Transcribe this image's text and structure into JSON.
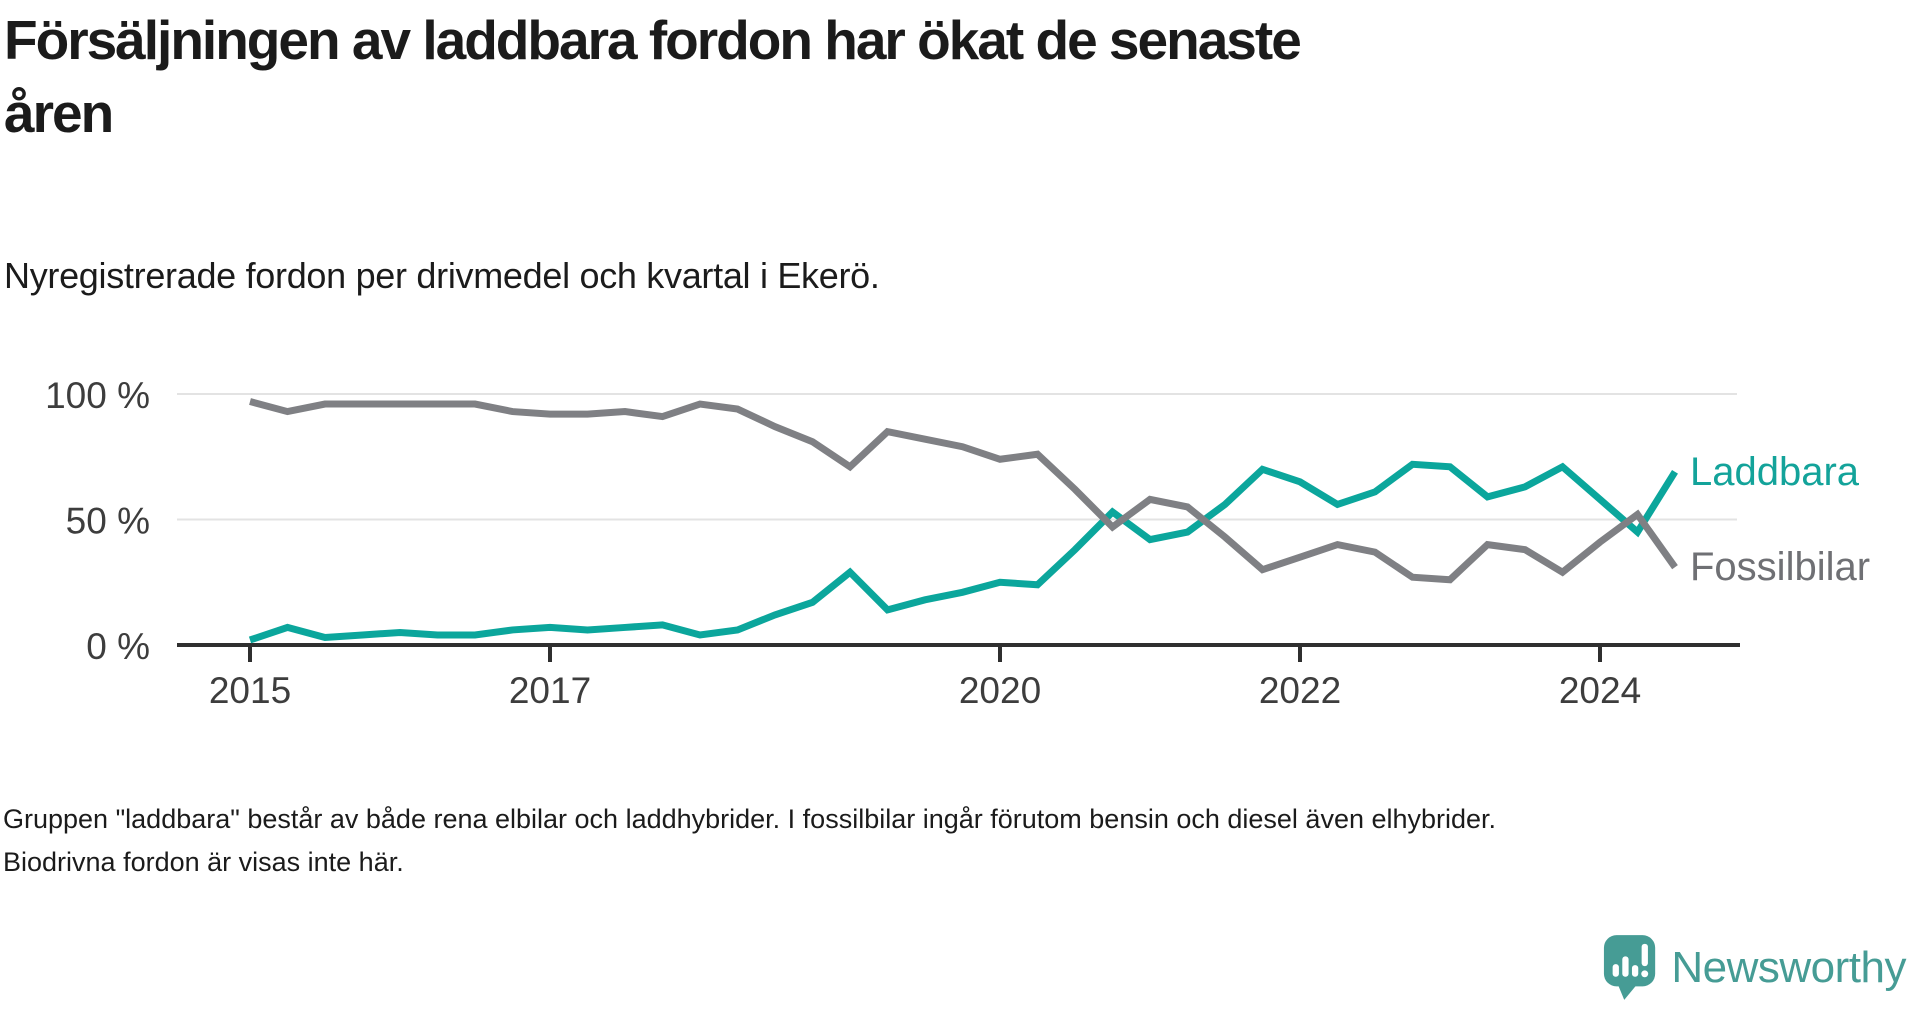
{
  "header": {
    "title_line1": "Försäljningen av laddbara fordon har ökat de senaste",
    "title_line2": "åren",
    "subtitle": "Nyregistrerade fordon per drivmedel och kvartal i Ekerö."
  },
  "chart_data": {
    "type": "line",
    "title": "Försäljningen av laddbara fordon har ökat de senaste åren",
    "subtitle": "Nyregistrerade fordon per drivmedel och kvartal i Ekerö.",
    "x_interval": "quarter",
    "x_start": "2015 Q1",
    "x_end": "2024 Q3",
    "x_axis": {
      "ticks": [
        {
          "label": "2015",
          "index": 0
        },
        {
          "label": "2017",
          "index": 8
        },
        {
          "label": "2020",
          "index": 20
        },
        {
          "label": "2022",
          "index": 28
        },
        {
          "label": "2024",
          "index": 36
        }
      ]
    },
    "y_axis": {
      "ticks": [
        {
          "label": "0 %",
          "value": 0
        },
        {
          "label": "50 %",
          "value": 50
        },
        {
          "label": "100 %",
          "value": 100
        }
      ],
      "range": [
        0,
        100
      ]
    },
    "grid": "horizontal",
    "legend_position": "line-end-labels-right",
    "series": [
      {
        "name": "Laddbara",
        "color": "#0BA69C",
        "label_color": "#13A39A",
        "values": [
          2,
          7,
          3,
          4,
          5,
          4,
          4,
          6,
          7,
          6,
          7,
          8,
          4,
          6,
          12,
          17,
          29,
          14,
          18,
          21,
          25,
          24,
          38,
          53,
          42,
          45,
          56,
          70,
          65,
          56,
          61,
          72,
          71,
          59,
          63,
          71,
          58,
          45,
          69
        ]
      },
      {
        "name": "Fossilbilar",
        "color": "#7F8084",
        "label_color": "#6F7074",
        "values": [
          97,
          93,
          96,
          96,
          96,
          96,
          96,
          93,
          92,
          92,
          93,
          91,
          96,
          94,
          87,
          81,
          71,
          85,
          82,
          79,
          74,
          76,
          62,
          47,
          58,
          55,
          43,
          30,
          35,
          40,
          37,
          27,
          26,
          40,
          38,
          29,
          41,
          52,
          31
        ]
      }
    ]
  },
  "footer": {
    "footnote": "Gruppen \"laddbara\" består av både rena elbilar och laddhybrider. I fossilbilar ingår förutom bensin och diesel även elhybrider. Biodrivna fordon är visas inte här.",
    "logo_text": "Newsworthy"
  },
  "colors": {
    "background": "#FFFFFF",
    "title": "#1B1B1B",
    "axis_line": "#2F2F2F",
    "axis_label": "#3D3D3D",
    "gridline": "#E3E3E3",
    "accent_teal": "#0BA69C",
    "line_gray": "#7F8084",
    "logo_teal": "#469C95"
  }
}
